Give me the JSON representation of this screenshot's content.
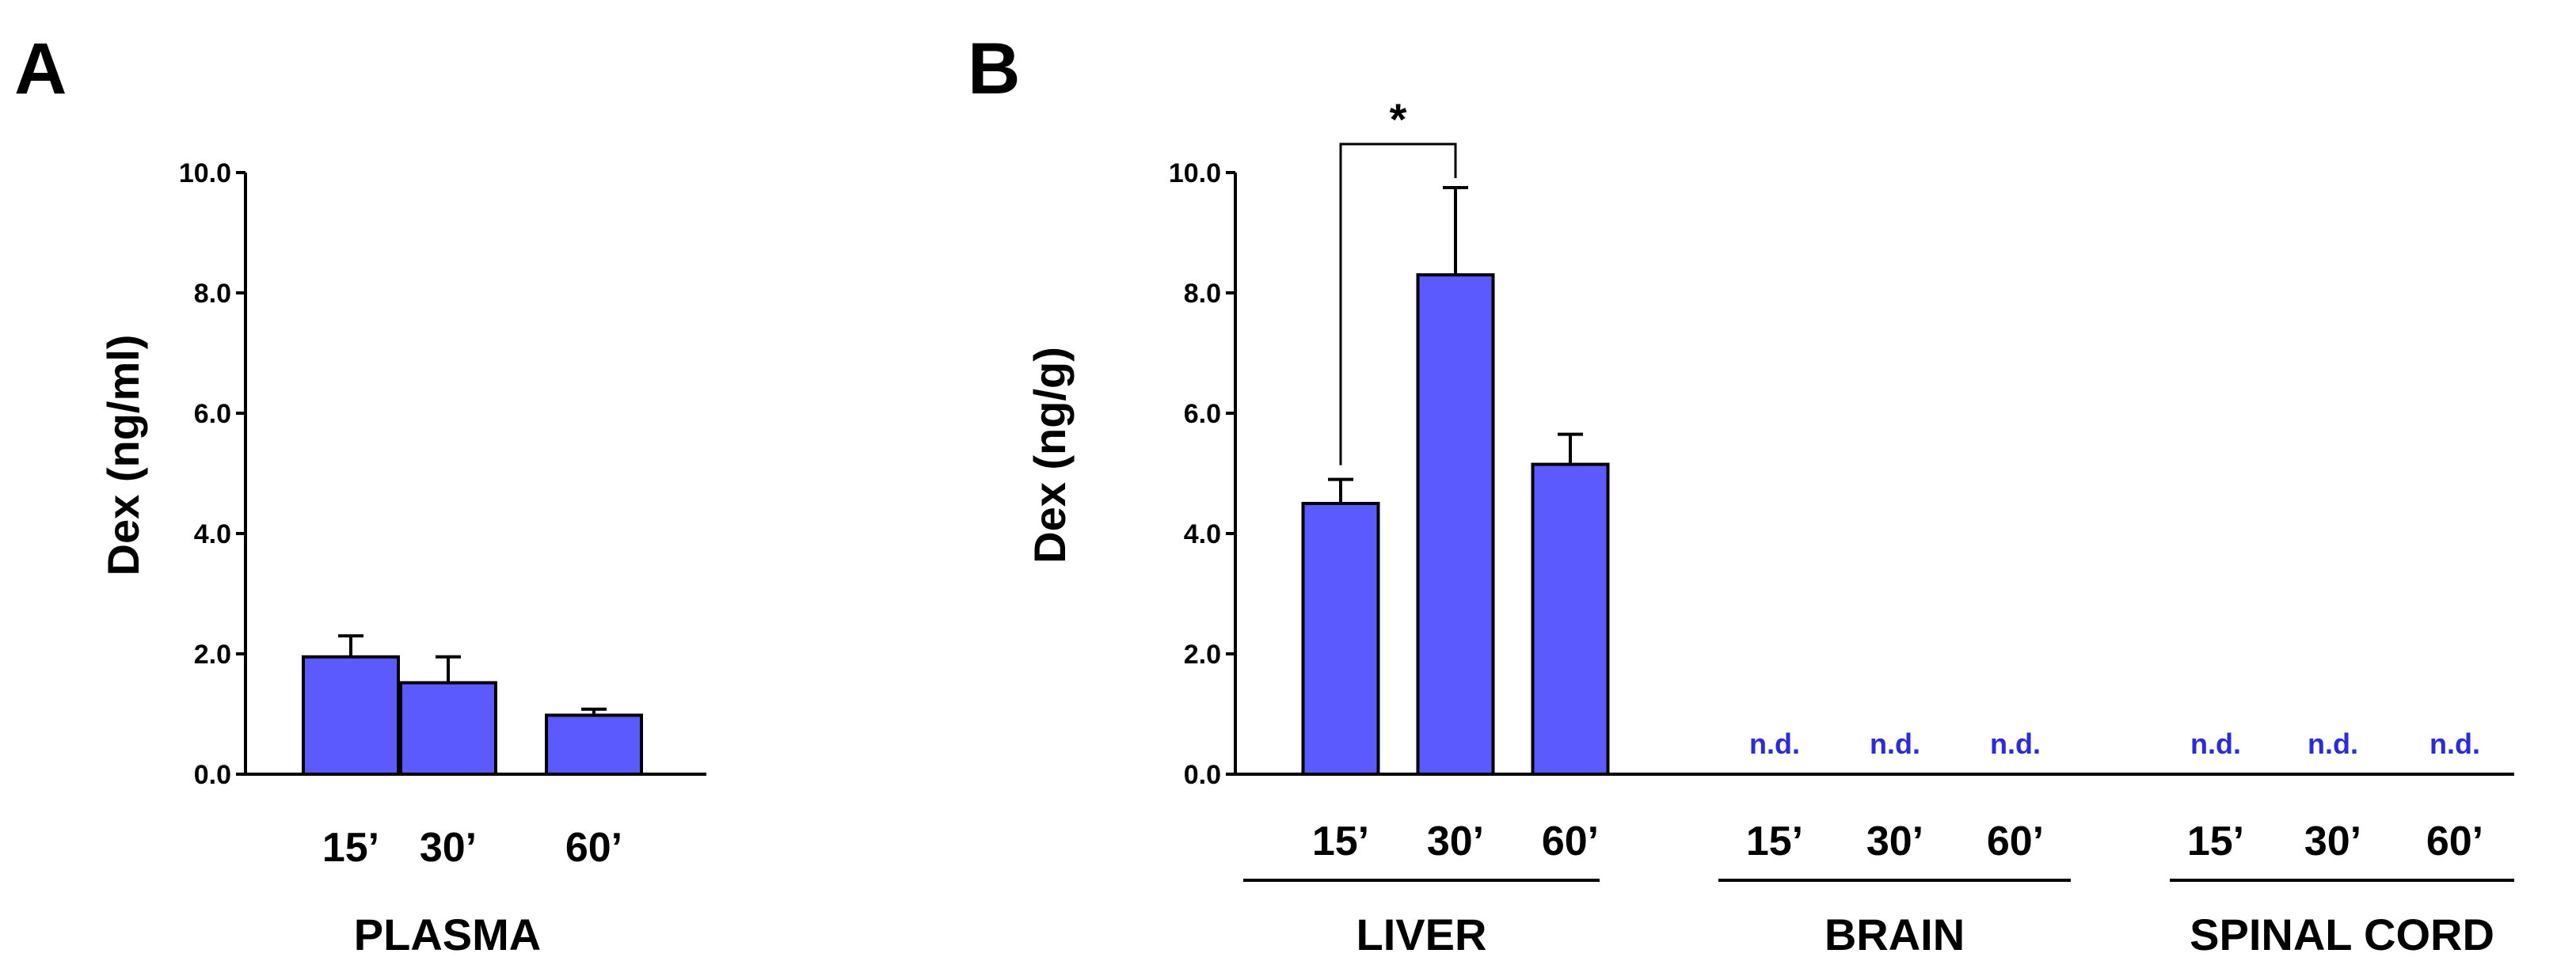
{
  "panels": [
    {
      "letter": "A",
      "ylabel": "Dex (ng/ml)",
      "ticks": [
        "0.0",
        "2.0",
        "4.0",
        "6.0",
        "8.0",
        "10.0"
      ]
    },
    {
      "letter": "B",
      "ylabel": "Dex (ng/g)",
      "ticks": [
        "0.0",
        "2.0",
        "4.0",
        "6.0",
        "8.0",
        "10.0"
      ],
      "significance": "*"
    }
  ],
  "chart_data": [
    {
      "type": "bar",
      "title": "",
      "xlabel": "PLASMA",
      "ylabel": "Dex (ng/ml)",
      "ylim": [
        0,
        10
      ],
      "bar_color": "#5a5aff",
      "categories": [
        "15’",
        "30’",
        "60’"
      ],
      "series": [
        {
          "values": [
            1.95,
            1.52,
            0.98
          ],
          "error": [
            0.35,
            0.43,
            0.1
          ]
        }
      ]
    },
    {
      "type": "bar",
      "title": "",
      "ylabel": "Dex (ng/g)",
      "ylim": [
        0,
        10
      ],
      "bar_color": "#5a5aff",
      "groups": [
        {
          "name": "LIVER",
          "categories": [
            "15’",
            "30’",
            "60’"
          ],
          "values": [
            4.5,
            8.3,
            5.15
          ],
          "error": [
            0.4,
            1.45,
            0.5
          ],
          "labels": [
            "",
            "",
            ""
          ]
        },
        {
          "name": "BRAIN",
          "categories": [
            "15’",
            "30’",
            "60’"
          ],
          "values": [
            null,
            null,
            null
          ],
          "error": [
            null,
            null,
            null
          ],
          "labels": [
            "n.d.",
            "n.d.",
            "n.d."
          ]
        },
        {
          "name": "SPINAL CORD",
          "categories": [
            "15’",
            "30’",
            "60’"
          ],
          "values": [
            null,
            null,
            null
          ],
          "error": [
            null,
            null,
            null
          ],
          "labels": [
            "n.d.",
            "n.d.",
            "n.d."
          ]
        }
      ],
      "annotations": [
        {
          "text": "*",
          "between": [
            "LIVER 15’",
            "LIVER 30’"
          ]
        }
      ]
    }
  ]
}
